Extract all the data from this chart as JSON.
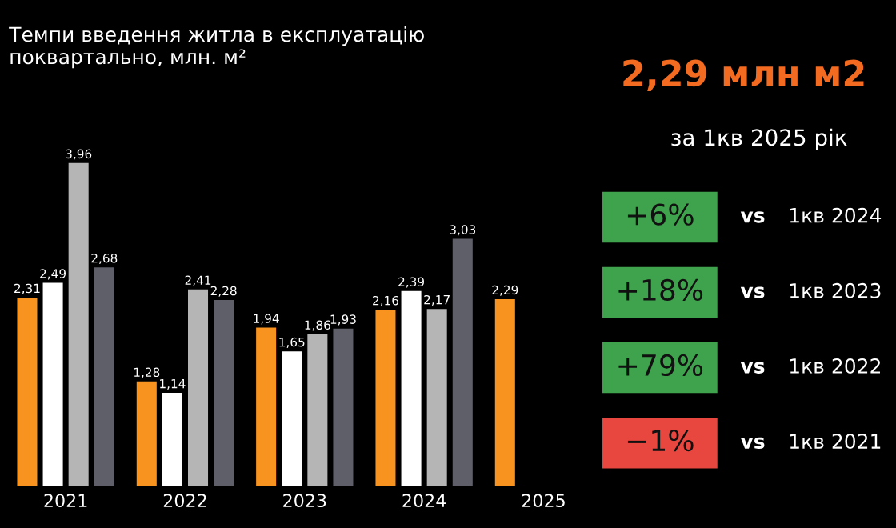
{
  "chart_data": [
    {
      "type": "bar",
      "title": "Темпи введення житла в експлуатацію\nпоквартально, млн. м²",
      "categories": [
        "2021",
        "2022",
        "2023",
        "2024",
        "2025"
      ],
      "series": [
        {
          "color": "#f7931e",
          "values": [
            2.31,
            1.28,
            1.94,
            2.16,
            2.29
          ],
          "value_labels": [
            "2,31",
            "1,28",
            "1,94",
            "2,16",
            "2,29"
          ]
        },
        {
          "color": "#ffffff",
          "values": [
            2.49,
            1.14,
            1.65,
            2.39,
            null
          ],
          "value_labels": [
            "2,49",
            "1,14",
            "1,65",
            "2,39",
            null
          ]
        },
        {
          "color": "#b5b5b5",
          "values": [
            3.96,
            2.41,
            1.86,
            2.17,
            null
          ],
          "value_labels": [
            "3,96",
            "2,41",
            "1,86",
            "2,17",
            null
          ]
        },
        {
          "color": "#5e5f68",
          "values": [
            2.68,
            2.28,
            1.93,
            3.03,
            null
          ],
          "value_labels": [
            "2,68",
            "2,28",
            "1,93",
            "3,03",
            null
          ]
        }
      ],
      "tick_labels": "x",
      "grid": false,
      "legend": false
    },
    {
      "type": "other",
      "title": "2,29 млн м2",
      "subtitle": "за 1кв 2025 рік",
      "categories": [
        "1кв 2024",
        "1кв 2023",
        "1кв 2022",
        "1кв 2021"
      ],
      "value_labels": [
        "+6%",
        "+18%",
        "+79%",
        "−1%"
      ],
      "colors": [
        "#3fa34d",
        "#3fa34d",
        "#3fa34d",
        "#e8473f"
      ],
      "annotations": [
        "vs",
        "vs",
        "vs",
        "vs"
      ]
    }
  ]
}
